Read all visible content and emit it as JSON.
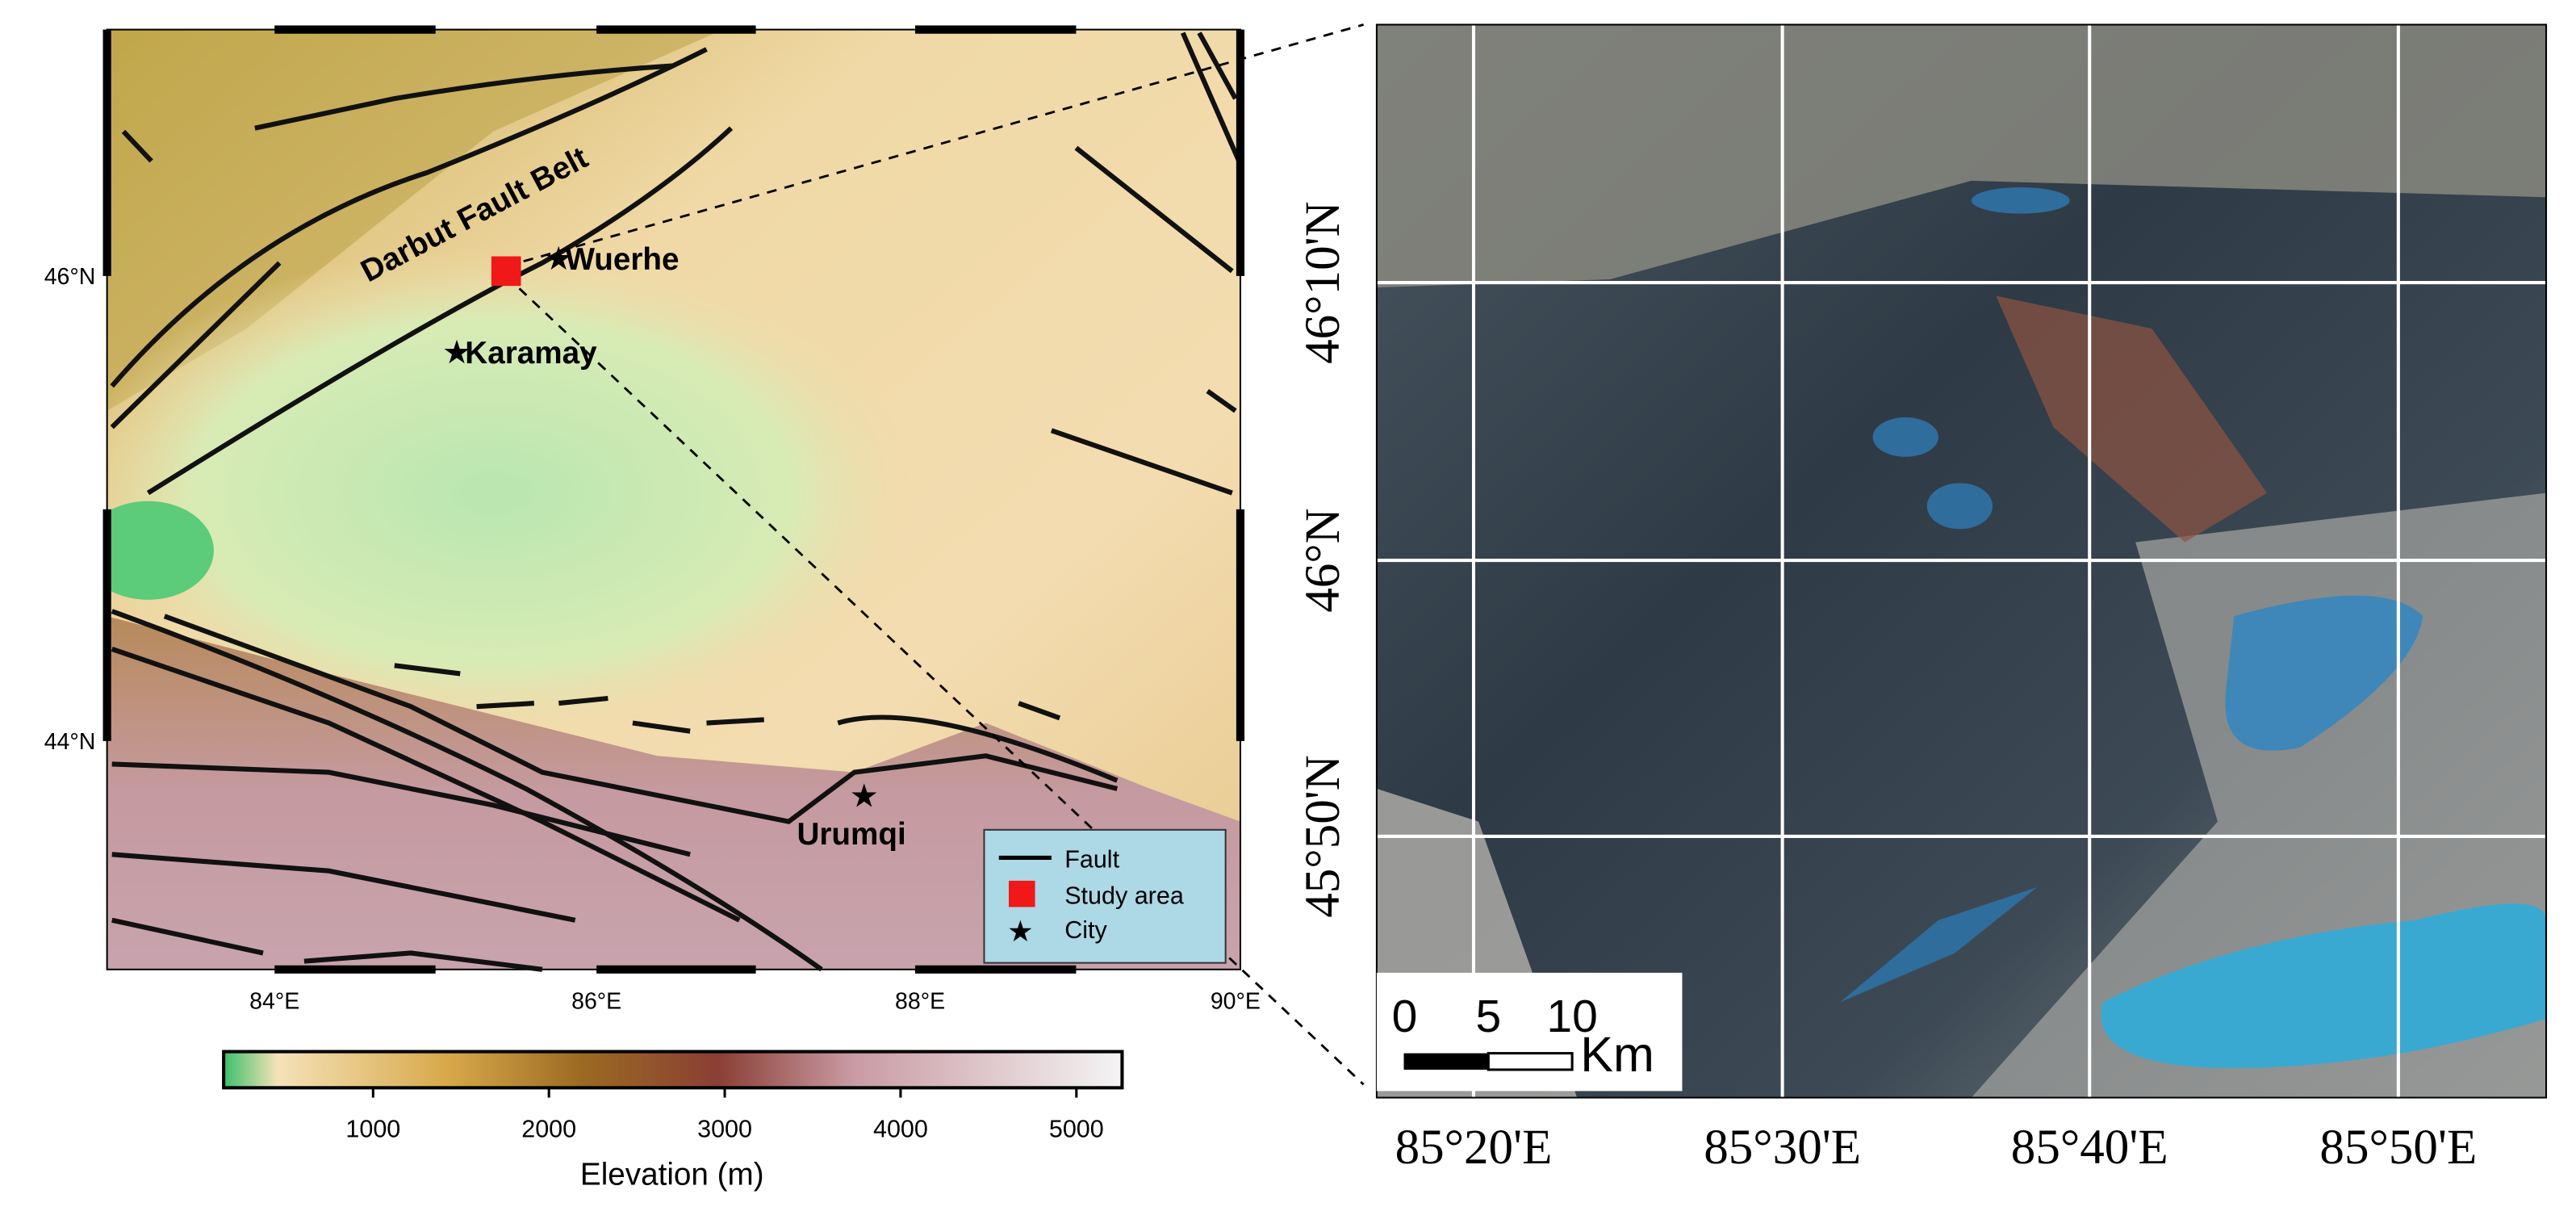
{
  "left_map": {
    "lat_labels": [
      "46°N",
      "44°N"
    ],
    "lon_labels": [
      "84°E",
      "86°E",
      "88°E",
      "90°E"
    ],
    "places": {
      "fault_belt": "Darbut Fault Belt",
      "wuerhe": "Wuerhe",
      "karamay": "Karamay",
      "urumqi": "Urumqi"
    },
    "legend": [
      "Fault",
      "Study area",
      "City"
    ]
  },
  "colorbar": {
    "label": "Elevation (m)",
    "ticks": [
      1000,
      2000,
      3000,
      4000,
      5000
    ],
    "lim": [
      150,
      5260
    ]
  },
  "right_image": {
    "lat_labels": [
      "46°10'N",
      "46°N",
      "45°50'N"
    ],
    "lon_labels": [
      "85°20'E",
      "85°30'E",
      "85°40'E",
      "85°50'E"
    ],
    "scale_bar": {
      "ticks": [
        0,
        5,
        10
      ],
      "unit": "Km"
    }
  }
}
